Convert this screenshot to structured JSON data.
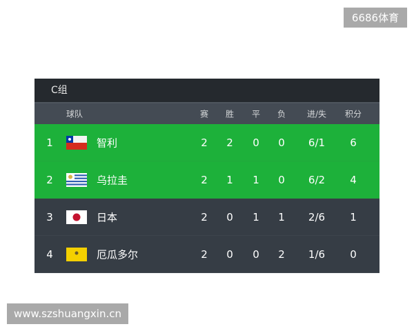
{
  "watermarks": {
    "top_right": "6686体育",
    "bottom_left": "www.szshuangxin.cn"
  },
  "group_title": "C组",
  "headers": {
    "team": "球队",
    "played": "赛",
    "won": "胜",
    "drawn": "平",
    "lost": "负",
    "goals": "进/失",
    "points": "积分"
  },
  "colors": {
    "qualified": "#1db13a",
    "normal": "#363d45",
    "title_bar": "#25292e",
    "header": "#444b54"
  },
  "rows": [
    {
      "rank": "1",
      "flag": "chile-flag",
      "team": "智利",
      "played": "2",
      "won": "2",
      "drawn": "0",
      "lost": "0",
      "goals": "6/1",
      "points": "6",
      "qualified": true
    },
    {
      "rank": "2",
      "flag": "uruguay-flag",
      "team": "乌拉圭",
      "played": "2",
      "won": "1",
      "drawn": "1",
      "lost": "0",
      "goals": "6/2",
      "points": "4",
      "qualified": true
    },
    {
      "rank": "3",
      "flag": "japan-flag",
      "team": "日本",
      "played": "2",
      "won": "0",
      "drawn": "1",
      "lost": "1",
      "goals": "2/6",
      "points": "1",
      "qualified": false
    },
    {
      "rank": "4",
      "flag": "ecuador-flag",
      "team": "厄瓜多尔",
      "played": "2",
      "won": "0",
      "drawn": "0",
      "lost": "2",
      "goals": "1/6",
      "points": "0",
      "qualified": false
    }
  ]
}
